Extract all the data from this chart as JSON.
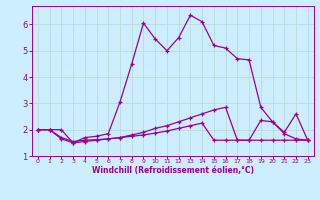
{
  "xlabel": "Windchill (Refroidissement éolien,°C)",
  "bg_color": "#cceeff",
  "grid_color": "#b8ddd8",
  "line_color": "#990099",
  "xlim": [
    -0.5,
    23.5
  ],
  "ylim": [
    1.0,
    6.7
  ],
  "yticks": [
    1,
    2,
    3,
    4,
    5,
    6
  ],
  "xticks": [
    0,
    1,
    2,
    3,
    4,
    5,
    6,
    7,
    8,
    9,
    10,
    11,
    12,
    13,
    14,
    15,
    16,
    17,
    18,
    19,
    20,
    21,
    22,
    23
  ],
  "series1_x": [
    0,
    1,
    2,
    3,
    4,
    5,
    6,
    7,
    8,
    9,
    10,
    11,
    12,
    13,
    14,
    15,
    16,
    17,
    18,
    19,
    20,
    21,
    22,
    23
  ],
  "series1_y": [
    2.0,
    2.0,
    2.0,
    1.5,
    1.7,
    1.75,
    1.85,
    3.05,
    4.5,
    6.05,
    5.45,
    5.0,
    5.5,
    6.35,
    6.1,
    5.2,
    5.1,
    4.7,
    4.65,
    2.85,
    2.3,
    1.9,
    2.6,
    1.6
  ],
  "series2_x": [
    0,
    1,
    2,
    3,
    4,
    5,
    6,
    7,
    8,
    9,
    10,
    11,
    12,
    13,
    14,
    15,
    16,
    17,
    18,
    19,
    20,
    21,
    22,
    23
  ],
  "series2_y": [
    2.0,
    2.0,
    1.65,
    1.5,
    1.55,
    1.6,
    1.65,
    1.7,
    1.8,
    1.9,
    2.05,
    2.15,
    2.3,
    2.45,
    2.6,
    2.75,
    2.85,
    1.6,
    1.6,
    2.35,
    2.3,
    1.85,
    1.65,
    1.6
  ],
  "series3_x": [
    0,
    1,
    2,
    3,
    4,
    5,
    6,
    7,
    8,
    9,
    10,
    11,
    12,
    13,
    14,
    15,
    16,
    17,
    18,
    19,
    20,
    21,
    22,
    23
  ],
  "series3_y": [
    2.0,
    2.0,
    1.7,
    1.55,
    1.6,
    1.62,
    1.65,
    1.7,
    1.75,
    1.8,
    1.87,
    1.95,
    2.05,
    2.15,
    2.25,
    1.6,
    1.6,
    1.6,
    1.6,
    1.6,
    1.6,
    1.6,
    1.6,
    1.6
  ]
}
